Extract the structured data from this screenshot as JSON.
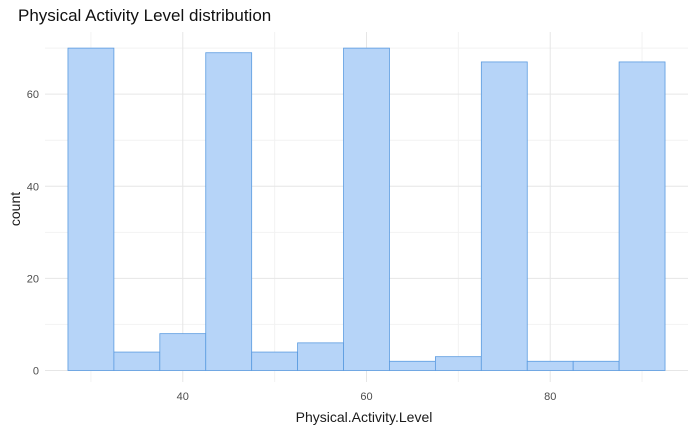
{
  "chart_data": {
    "type": "bar",
    "title": "Physical Activity Level distribution",
    "xlabel": "Physical.Activity.Level",
    "ylabel": "count",
    "bins": [
      {
        "x0": 27.5,
        "x1": 32.5,
        "count": 70
      },
      {
        "x0": 32.5,
        "x1": 37.5,
        "count": 4
      },
      {
        "x0": 37.5,
        "x1": 42.5,
        "count": 8
      },
      {
        "x0": 42.5,
        "x1": 47.5,
        "count": 69
      },
      {
        "x0": 47.5,
        "x1": 52.5,
        "count": 4
      },
      {
        "x0": 52.5,
        "x1": 57.5,
        "count": 6
      },
      {
        "x0": 57.5,
        "x1": 62.5,
        "count": 70
      },
      {
        "x0": 62.5,
        "x1": 67.5,
        "count": 2
      },
      {
        "x0": 67.5,
        "x1": 72.5,
        "count": 3
      },
      {
        "x0": 72.5,
        "x1": 77.5,
        "count": 67
      },
      {
        "x0": 77.5,
        "x1": 82.5,
        "count": 2
      },
      {
        "x0": 82.5,
        "x1": 87.5,
        "count": 2
      },
      {
        "x0": 87.5,
        "x1": 92.5,
        "count": 67
      }
    ],
    "x_ticks": [
      40,
      60,
      80
    ],
    "y_ticks": [
      0,
      20,
      40,
      60
    ],
    "xlim": [
      25,
      95
    ],
    "ylim": [
      -2.5,
      73.5
    ],
    "grid": true,
    "colors": {
      "fill": "#b6d4f8",
      "stroke": "#5b9be0",
      "grid_major": "#e6e6e6",
      "grid_minor": "#f2f2f2",
      "tick_text": "#4d4d4d",
      "axis_title": "#1a1a1a"
    }
  }
}
